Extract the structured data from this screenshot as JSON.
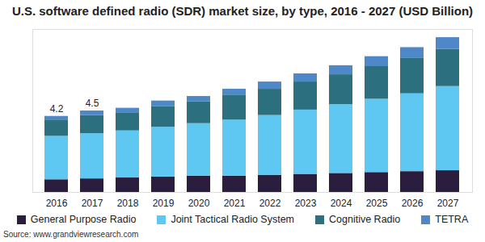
{
  "chart_data": {
    "type": "bar",
    "title": "U.S. software defined radio (SDR) market size, by type, 2016 - 2027 (USD Billion)",
    "source": "Source: www.grandviewresearch.com",
    "categories": [
      "2016",
      "2017",
      "2018",
      "2019",
      "2020",
      "2021",
      "2022",
      "2023",
      "2024",
      "2025",
      "2026",
      "2027"
    ],
    "series": [
      {
        "name": "General Purpose Radio",
        "color": "#2b1d3d",
        "values": [
          0.7,
          0.75,
          0.8,
          0.85,
          0.9,
          0.9,
          0.95,
          1.0,
          1.05,
          1.1,
          1.15,
          1.2
        ]
      },
      {
        "name": "Joint Tactical Radio System",
        "color": "#5ec8f2",
        "values": [
          2.4,
          2.5,
          2.6,
          2.75,
          2.9,
          3.1,
          3.3,
          3.55,
          3.8,
          4.05,
          4.3,
          4.65
        ]
      },
      {
        "name": "Cognitive Radio",
        "color": "#2c6f7f",
        "values": [
          0.9,
          1.0,
          1.0,
          1.15,
          1.2,
          1.35,
          1.45,
          1.55,
          1.65,
          1.8,
          1.95,
          2.05
        ]
      },
      {
        "name": "TETRA",
        "color": "#4f88c8",
        "values": [
          0.2,
          0.25,
          0.25,
          0.3,
          0.3,
          0.35,
          0.4,
          0.45,
          0.5,
          0.55,
          0.6,
          0.65
        ]
      }
    ],
    "annotations": [
      {
        "x": "2016",
        "y": 4.2,
        "text": "4.2"
      },
      {
        "x": "2017",
        "y": 4.5,
        "text": "4.5"
      }
    ],
    "stacked": true,
    "ylim": [
      0,
      9
    ],
    "yticks": [],
    "grid": false,
    "tick_labels": "x",
    "legend": "bottom"
  }
}
